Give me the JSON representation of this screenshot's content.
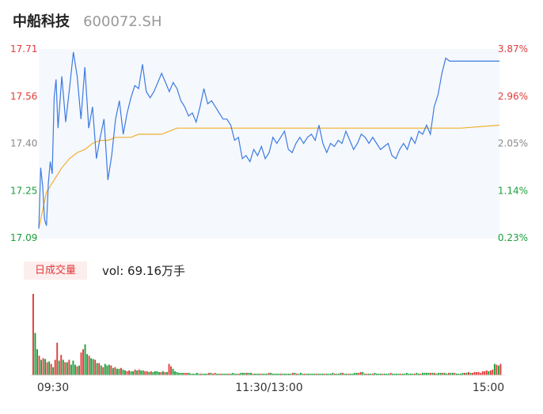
{
  "header": {
    "name": "中船科技",
    "code": "600072.SH"
  },
  "volume_panel": {
    "tab_label": "日成交量",
    "vol_prefix": "vol: ",
    "vol_value": "69.16万手"
  },
  "colors": {
    "up": "#e03b3b",
    "down": "#1a9f3a",
    "price_line": "#3d7be0",
    "avg_line": "#f0b030",
    "grid_fill": "#eef3fb"
  },
  "chart_data": [
    {
      "type": "line",
      "title": "",
      "y_left_ticks": [
        "17.71",
        "17.56",
        "17.40",
        "17.25",
        "17.09"
      ],
      "y_right_ticks": [
        "3.87%",
        "2.96%",
        "2.05%",
        "1.14%",
        "0.23%"
      ],
      "ylim": [
        17.09,
        17.71
      ],
      "x_ticks": [
        "09:30",
        "11:30/13:00",
        "15:00"
      ],
      "series": [
        {
          "role": "price",
          "x": [
            0,
            1,
            2,
            3,
            4,
            5,
            6,
            7,
            8,
            9,
            10,
            12,
            14,
            16,
            18,
            20,
            22,
            24,
            26,
            28,
            30,
            32,
            34,
            36,
            38,
            40,
            42,
            44,
            46,
            48,
            50,
            52,
            54,
            56,
            58,
            60,
            62,
            64,
            66,
            68,
            70,
            72,
            74,
            76,
            78,
            80,
            82,
            84,
            86,
            88,
            90,
            92,
            94,
            96,
            98,
            100,
            102,
            104,
            106,
            108,
            110,
            112,
            114,
            116,
            118,
            120,
            122,
            124,
            126,
            128,
            130,
            132,
            134,
            136,
            138,
            140,
            142,
            144,
            146,
            148,
            150,
            152,
            154,
            156,
            158,
            160,
            162,
            164,
            166,
            168,
            170,
            172,
            174,
            176,
            178,
            180,
            182,
            184,
            186,
            188,
            190,
            192,
            194,
            196,
            198,
            200,
            202,
            204,
            206,
            208,
            210,
            212,
            214,
            216,
            218,
            220,
            222,
            224,
            226,
            228,
            230,
            232,
            234,
            236,
            238,
            240
          ],
          "values": [
            17.12,
            17.32,
            17.26,
            17.15,
            17.13,
            17.27,
            17.34,
            17.3,
            17.55,
            17.61,
            17.45,
            17.62,
            17.47,
            17.58,
            17.7,
            17.62,
            17.48,
            17.65,
            17.45,
            17.52,
            17.35,
            17.42,
            17.48,
            17.28,
            17.36,
            17.48,
            17.54,
            17.43,
            17.5,
            17.55,
            17.59,
            17.58,
            17.66,
            17.57,
            17.55,
            17.57,
            17.6,
            17.63,
            17.6,
            17.57,
            17.6,
            17.58,
            17.54,
            17.52,
            17.49,
            17.5,
            17.47,
            17.52,
            17.58,
            17.53,
            17.54,
            17.52,
            17.5,
            17.48,
            17.48,
            17.46,
            17.41,
            17.42,
            17.35,
            17.36,
            17.34,
            17.38,
            17.36,
            17.39,
            17.35,
            17.37,
            17.42,
            17.4,
            17.42,
            17.44,
            17.38,
            17.37,
            17.4,
            17.42,
            17.4,
            17.42,
            17.43,
            17.41,
            17.46,
            17.4,
            17.37,
            17.4,
            17.39,
            17.41,
            17.4,
            17.44,
            17.41,
            17.38,
            17.4,
            17.43,
            17.42,
            17.4,
            17.42,
            17.4,
            17.38,
            17.39,
            17.4,
            17.36,
            17.35,
            17.38,
            17.4,
            17.38,
            17.42,
            17.4,
            17.44,
            17.43,
            17.46,
            17.43,
            17.52,
            17.56,
            17.63,
            17.68,
            17.67,
            17.67,
            17.67,
            17.67,
            17.67,
            17.67,
            17.67,
            17.67,
            17.67,
            17.67,
            17.67,
            17.67,
            17.67,
            17.67
          ]
        },
        {
          "role": "average",
          "x": [
            0,
            4,
            8,
            12,
            16,
            20,
            24,
            28,
            32,
            36,
            40,
            44,
            48,
            52,
            56,
            60,
            64,
            68,
            72,
            76,
            80,
            84,
            88,
            92,
            96,
            100,
            120,
            140,
            160,
            180,
            200,
            220,
            240
          ],
          "values": [
            17.12,
            17.24,
            17.28,
            17.32,
            17.35,
            17.37,
            17.38,
            17.4,
            17.41,
            17.41,
            17.42,
            17.42,
            17.42,
            17.43,
            17.43,
            17.43,
            17.43,
            17.44,
            17.45,
            17.45,
            17.45,
            17.45,
            17.45,
            17.45,
            17.45,
            17.45,
            17.45,
            17.45,
            17.45,
            17.45,
            17.45,
            17.45,
            17.46
          ]
        }
      ]
    },
    {
      "type": "bar",
      "title": "",
      "ylim": [
        0,
        100
      ],
      "values": [
        100,
        52,
        32,
        24,
        19,
        21,
        20,
        16,
        17,
        14,
        10,
        19,
        40,
        18,
        25,
        19,
        16,
        16,
        19,
        13,
        18,
        13,
        11,
        12,
        28,
        32,
        38,
        26,
        24,
        21,
        20,
        19,
        15,
        15,
        12,
        10,
        14,
        12,
        13,
        12,
        9,
        10,
        8,
        8,
        9,
        7,
        6,
        5,
        6,
        5,
        5,
        7,
        6,
        7,
        6,
        6,
        5,
        5,
        4,
        5,
        4,
        5,
        5,
        4,
        4,
        5,
        4,
        4,
        14,
        11,
        8,
        5,
        4,
        3,
        3,
        3,
        3,
        3,
        3,
        2,
        2,
        2,
        3,
        2,
        2,
        2,
        2,
        2,
        3,
        3,
        2,
        3,
        2,
        2,
        2,
        2,
        2,
        2,
        2,
        2,
        3,
        2,
        2,
        2,
        3,
        3,
        3,
        3,
        3,
        3,
        2,
        2,
        2,
        2,
        2,
        2,
        2,
        2,
        3,
        3,
        2,
        2,
        2,
        2,
        2,
        2,
        2,
        2,
        2,
        2,
        3,
        3,
        2,
        2,
        3,
        2,
        2,
        2,
        2,
        2,
        2,
        2,
        2,
        2,
        2,
        2,
        2,
        2,
        2,
        2,
        3,
        2,
        2,
        2,
        3,
        3,
        2,
        2,
        2,
        2,
        2,
        3,
        3,
        3,
        4,
        4,
        2,
        2,
        2,
        2,
        2,
        3,
        2,
        2,
        2,
        2,
        2,
        2,
        2,
        3,
        2,
        2,
        2,
        2,
        2,
        2,
        2,
        3,
        2,
        2,
        2,
        2,
        3,
        2,
        2,
        3,
        3,
        3,
        3,
        3,
        3,
        3,
        2,
        3,
        3,
        3,
        3,
        2,
        3,
        3,
        3,
        3,
        2,
        2,
        2,
        3,
        3,
        3,
        4,
        3,
        3,
        4,
        4,
        4,
        3,
        5,
        5,
        6,
        5,
        6,
        7,
        14,
        13,
        12,
        14
      ],
      "colors": [
        "r",
        "g",
        "g",
        "r",
        "g",
        "r",
        "g",
        "r",
        "g",
        "r",
        "g",
        "r",
        "r",
        "g",
        "r",
        "g",
        "r",
        "g",
        "r",
        "g",
        "g",
        "g",
        "r",
        "g",
        "r",
        "r",
        "g",
        "g",
        "r",
        "g",
        "g",
        "r",
        "g",
        "r",
        "g",
        "r",
        "g",
        "g",
        "g",
        "r",
        "g",
        "r",
        "g",
        "g",
        "r",
        "g",
        "g",
        "r",
        "r",
        "g",
        "g",
        "r",
        "g",
        "r",
        "g",
        "g",
        "r",
        "r",
        "g",
        "r",
        "g",
        "g",
        "g",
        "g",
        "r",
        "g",
        "r",
        "g",
        "r",
        "r",
        "g",
        "g",
        "g",
        "g",
        "g",
        "g",
        "r",
        "r",
        "g",
        "g",
        "g",
        "g",
        "g",
        "g",
        "r",
        "g",
        "g",
        "g",
        "r",
        "g",
        "r",
        "r",
        "g",
        "g",
        "r",
        "g",
        "g",
        "g",
        "r",
        "g",
        "g",
        "g",
        "g",
        "r",
        "g",
        "g",
        "g",
        "r",
        "g",
        "g",
        "r",
        "g",
        "g",
        "g",
        "r",
        "g",
        "g",
        "g",
        "r",
        "g",
        "g",
        "g",
        "g",
        "g",
        "r",
        "g",
        "g",
        "g",
        "g",
        "g",
        "r",
        "g",
        "r",
        "g",
        "g",
        "g",
        "r",
        "g",
        "g",
        "g",
        "g",
        "g",
        "r",
        "g",
        "g",
        "g",
        "r",
        "g",
        "g",
        "g",
        "g",
        "r",
        "g",
        "g",
        "g",
        "r",
        "g",
        "g",
        "r",
        "g",
        "g",
        "g",
        "g",
        "r",
        "r",
        "g",
        "g",
        "r",
        "g",
        "g",
        "r",
        "g",
        "g",
        "g",
        "g",
        "r",
        "g",
        "g",
        "g",
        "r",
        "g",
        "g",
        "g",
        "g",
        "r",
        "g",
        "g",
        "g",
        "g",
        "g",
        "g",
        "r",
        "g",
        "g",
        "r",
        "g",
        "g",
        "g",
        "g",
        "r",
        "g",
        "r",
        "g",
        "g",
        "g",
        "r",
        "g",
        "g",
        "r",
        "g",
        "g",
        "r",
        "g",
        "g",
        "g",
        "g",
        "r",
        "g",
        "r",
        "g",
        "r",
        "r",
        "r",
        "r",
        "r",
        "r",
        "r",
        "r",
        "g",
        "r",
        "r",
        "g",
        "r",
        "g",
        "r"
      ]
    }
  ]
}
